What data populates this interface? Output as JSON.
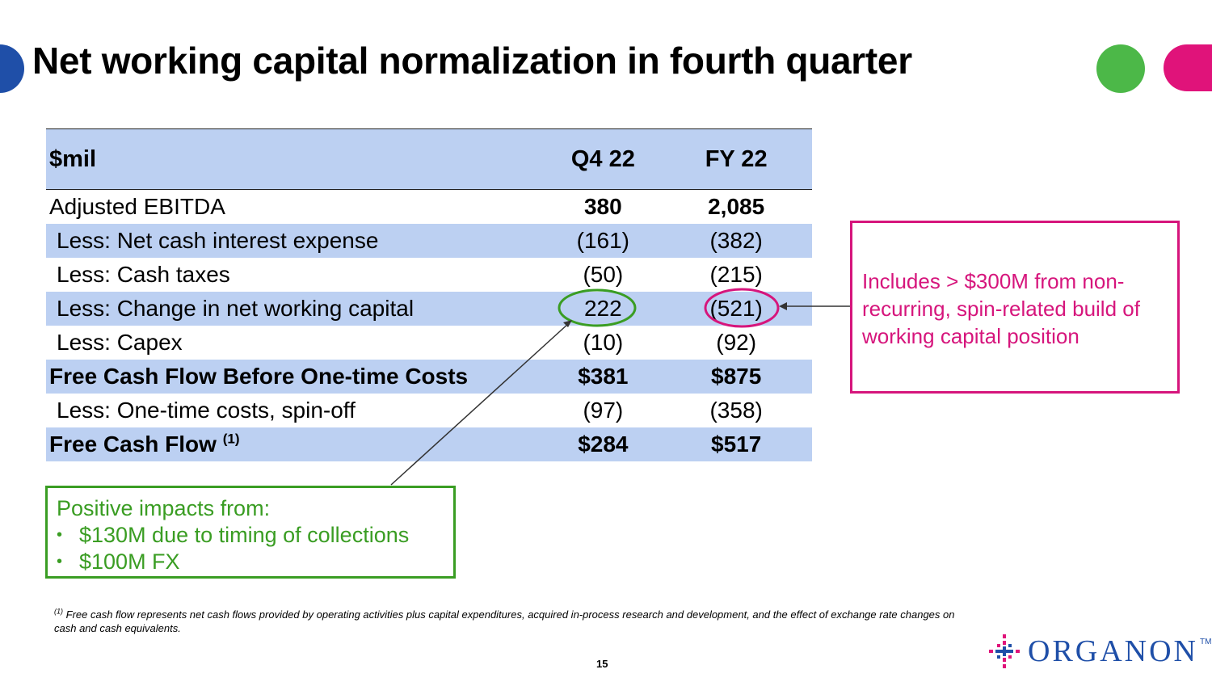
{
  "slide": {
    "title": "Net working capital normalization in fourth quarter",
    "page_number": "15"
  },
  "table": {
    "headers": [
      "$mil",
      "Q4 22",
      "FY 22"
    ],
    "rows": [
      {
        "label": "Adjusted EBITDA",
        "q4": "380",
        "fy": "2,085"
      },
      {
        "label": "Less: Net cash interest expense",
        "q4": "(161)",
        "fy": "(382)"
      },
      {
        "label": "Less: Cash taxes",
        "q4": "(50)",
        "fy": "(215)"
      },
      {
        "label": "Less: Change in net working capital",
        "q4": "222",
        "fy": "(521)"
      },
      {
        "label": "Less: Capex",
        "q4": "(10)",
        "fy": "(92)"
      },
      {
        "label": "Free Cash Flow Before One-time Costs",
        "q4": "$381",
        "fy": "$875"
      },
      {
        "label": "Less: One-time costs, spin-off",
        "q4": "(97)",
        "fy": "(358)"
      },
      {
        "label": "Free Cash Flow",
        "label_sup": "(1)",
        "q4": "$284",
        "fy": "$517"
      }
    ]
  },
  "callouts": {
    "positive": {
      "heading": "Positive impacts from:",
      "bullets": [
        "$130M due to timing of collections",
        "$100M FX"
      ],
      "color": "#3a9d23"
    },
    "spin": {
      "text": "Includes > $300M from non-recurring, spin-related build of working capital position",
      "color": "#d6157c"
    }
  },
  "footnote": {
    "marker": "(1)",
    "text": "Free cash flow represents net cash flows provided by operating activities plus capital expenditures, acquired in-process research and development, and the effect of exchange rate changes on cash and cash equivalents."
  },
  "logo": {
    "word": "ORGANON",
    "tm": "TM"
  },
  "colors": {
    "header_fill": "#bcd0f2",
    "brand_blue": "#1f4fa8",
    "green": "#4cb848",
    "pink": "#e0137a"
  }
}
